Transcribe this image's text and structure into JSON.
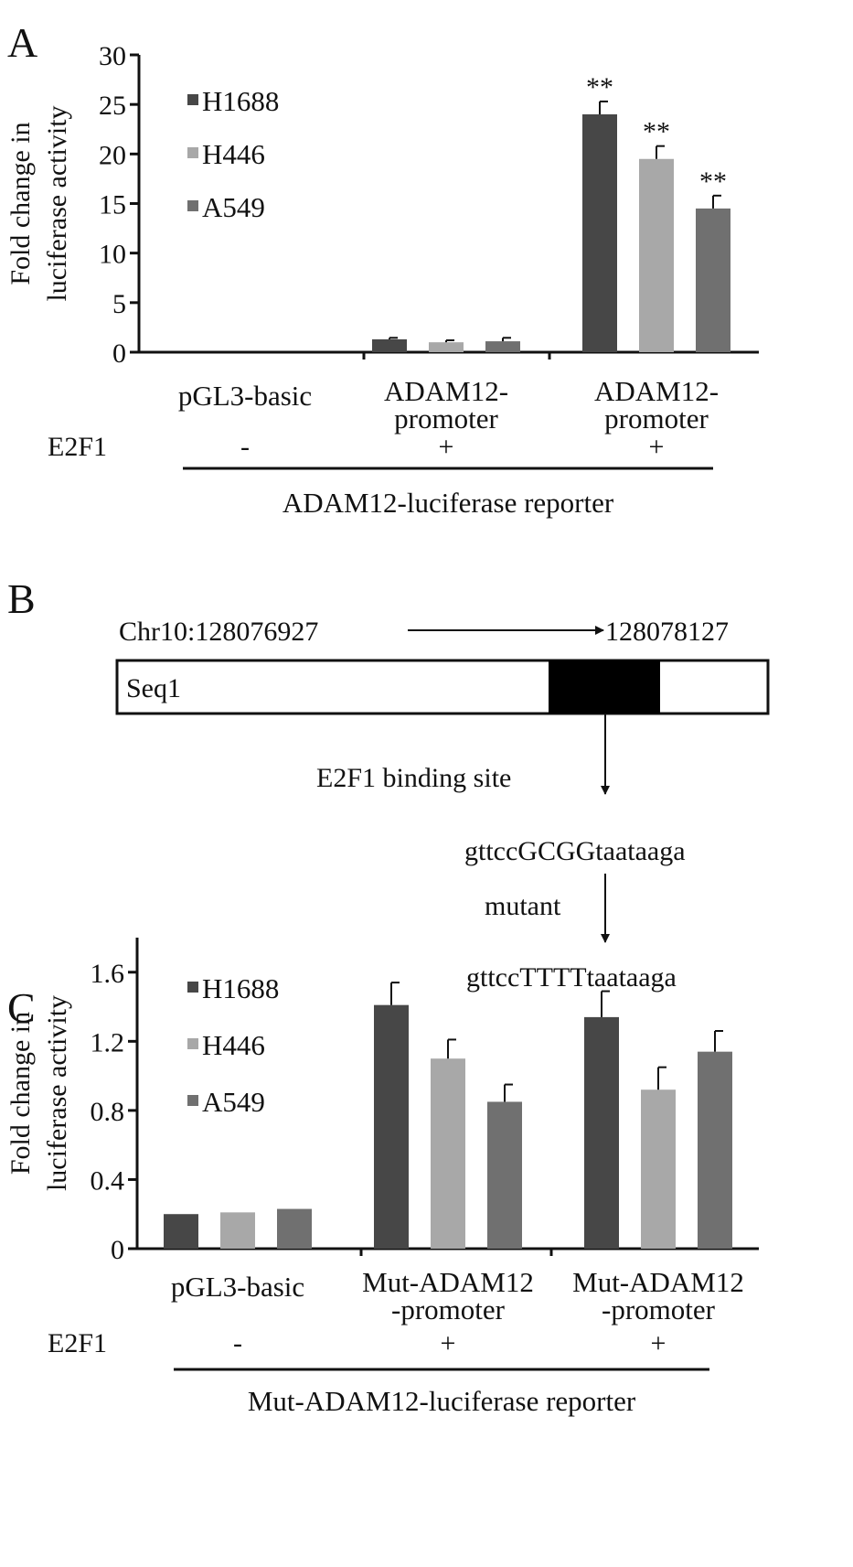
{
  "panels": {
    "a": {
      "letter": "A"
    },
    "b": {
      "letter": "B",
      "coord_start": "Chr10:128076927",
      "coord_end": "128078127",
      "seq_label": "Seq1",
      "binding_label": "E2F1 binding site",
      "wild_seq": "gttccGCGGtaataaga",
      "mutant_label": "mutant",
      "mut_seq": "gttccTTTTtaataaga"
    },
    "c": {
      "letter": "C"
    }
  },
  "colors": {
    "H1688": "#474747",
    "H446": "#a8a8a8",
    "A549": "#707070",
    "axis": "#111111"
  },
  "chart_data": [
    {
      "type": "bar",
      "ylabel": [
        "Fold change in",
        "luciferase activity"
      ],
      "ylim": [
        0,
        30
      ],
      "yticks": [
        "0",
        "5",
        "10",
        "15",
        "20",
        "25",
        "30"
      ],
      "categories": [
        [
          "pGL3-basic"
        ],
        [
          "ADAM12-",
          "promoter"
        ],
        [
          "ADAM12-",
          "promoter"
        ]
      ],
      "e2f1_row": {
        "label": "E2F1",
        "values": [
          "-",
          "+",
          "+"
        ]
      },
      "bracket_label": "ADAM12-luciferase reporter",
      "legend": [
        "H1688",
        "H446",
        "A549"
      ],
      "legend_placement": "top-left",
      "series": [
        {
          "name": "H1688",
          "values": [
            0,
            1.3,
            24.0
          ],
          "errors": [
            0,
            0.15,
            1.3
          ],
          "sig": [
            "",
            "",
            "**"
          ]
        },
        {
          "name": "H446",
          "values": [
            0,
            1.0,
            19.5
          ],
          "errors": [
            0,
            0.2,
            1.3
          ],
          "sig": [
            "",
            "",
            "**"
          ]
        },
        {
          "name": "A549",
          "values": [
            0,
            1.1,
            14.5
          ],
          "errors": [
            0,
            0.35,
            1.3
          ],
          "sig": [
            "",
            "",
            "**"
          ]
        }
      ]
    },
    {
      "type": "bar",
      "ylabel": [
        "Fold change in",
        "luciferase activity"
      ],
      "ylim": [
        0,
        1.8
      ],
      "yticks": [
        "0",
        "0.4",
        "0.8",
        "1.2",
        "1.6"
      ],
      "categories": [
        [
          "pGL3-basic"
        ],
        [
          "Mut-ADAM12",
          "-promoter"
        ],
        [
          "Mut-ADAM12",
          "-promoter"
        ]
      ],
      "e2f1_row": {
        "label": "E2F1",
        "values": [
          "-",
          "+",
          "+"
        ]
      },
      "bracket_label": "Mut-ADAM12-luciferase reporter",
      "legend": [
        "H1688",
        "H446",
        "A549"
      ],
      "legend_placement": "top-left",
      "series": [
        {
          "name": "H1688",
          "values": [
            0.2,
            1.41,
            1.34
          ],
          "errors": [
            0,
            0.13,
            0.15
          ],
          "sig": [
            "",
            "",
            ""
          ]
        },
        {
          "name": "H446",
          "values": [
            0.21,
            1.1,
            0.92
          ],
          "errors": [
            0,
            0.11,
            0.13
          ],
          "sig": [
            "",
            "",
            ""
          ]
        },
        {
          "name": "A549",
          "values": [
            0.23,
            0.85,
            1.14
          ],
          "errors": [
            0,
            0.1,
            0.12
          ],
          "sig": [
            "",
            "",
            ""
          ]
        }
      ]
    }
  ]
}
